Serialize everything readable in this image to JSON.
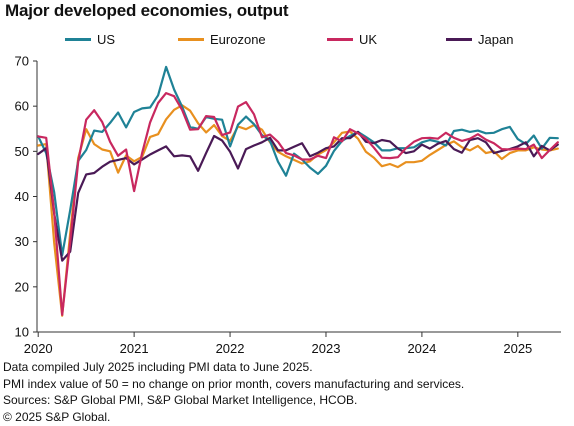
{
  "title": "Major developed economies, output",
  "chart_data": {
    "type": "line",
    "title": "Major developed economies, output",
    "xlabel": "",
    "ylabel": "",
    "ylim": [
      10,
      70
    ],
    "yticks": [
      10,
      20,
      30,
      40,
      50,
      60,
      70
    ],
    "xticks": [
      "2020",
      "2021",
      "2022",
      "2023",
      "2024",
      "2025"
    ],
    "xrange": [
      "2020-01",
      "2025-06"
    ],
    "grid": false,
    "legend": "top",
    "x": [
      "2020-01",
      "2020-02",
      "2020-03",
      "2020-04",
      "2020-05",
      "2020-06",
      "2020-07",
      "2020-08",
      "2020-09",
      "2020-10",
      "2020-11",
      "2020-12",
      "2021-01",
      "2021-02",
      "2021-03",
      "2021-04",
      "2021-05",
      "2021-06",
      "2021-07",
      "2021-08",
      "2021-09",
      "2021-10",
      "2021-11",
      "2021-12",
      "2022-01",
      "2022-02",
      "2022-03",
      "2022-04",
      "2022-05",
      "2022-06",
      "2022-07",
      "2022-08",
      "2022-09",
      "2022-10",
      "2022-11",
      "2022-12",
      "2023-01",
      "2023-02",
      "2023-03",
      "2023-04",
      "2023-05",
      "2023-06",
      "2023-07",
      "2023-08",
      "2023-09",
      "2023-10",
      "2023-11",
      "2023-12",
      "2024-01",
      "2024-02",
      "2024-03",
      "2024-04",
      "2024-05",
      "2024-06",
      "2024-07",
      "2024-08",
      "2024-09",
      "2024-10",
      "2024-11",
      "2024-12",
      "2025-01",
      "2025-02",
      "2025-03",
      "2025-04",
      "2025-05",
      "2025-06"
    ],
    "series": [
      {
        "name": "US",
        "color": "#1f8296",
        "values": [
          53.3,
          49.6,
          40.9,
          27.0,
          37.0,
          47.9,
          50.3,
          54.6,
          54.3,
          56.3,
          58.6,
          55.3,
          58.7,
          59.5,
          59.7,
          62.4,
          68.7,
          63.7,
          59.9,
          55.4,
          55.0,
          57.6,
          57.2,
          57.0,
          51.1,
          55.9,
          57.7,
          56.0,
          53.6,
          52.3,
          47.7,
          44.6,
          49.5,
          48.2,
          46.4,
          45.0,
          46.8,
          50.1,
          52.3,
          53.4,
          54.3,
          53.2,
          52.0,
          50.2,
          50.2,
          50.7,
          50.7,
          50.9,
          52.0,
          52.5,
          52.1,
          51.3,
          54.5,
          54.8,
          54.3,
          54.6,
          54.0,
          54.1,
          54.9,
          55.4,
          52.7,
          51.6,
          53.5,
          50.6,
          53.0,
          52.9
        ]
      },
      {
        "name": "Eurozone",
        "color": "#e8901f",
        "values": [
          51.3,
          51.6,
          29.7,
          13.6,
          31.9,
          48.5,
          54.9,
          51.6,
          50.4,
          50.0,
          45.3,
          49.1,
          47.8,
          48.8,
          53.2,
          53.8,
          57.1,
          59.2,
          60.2,
          59.0,
          56.2,
          54.2,
          55.8,
          53.4,
          52.3,
          55.5,
          54.9,
          55.8,
          54.8,
          52.0,
          49.9,
          48.9,
          48.1,
          47.3,
          47.8,
          49.3,
          50.3,
          52.0,
          54.1,
          54.4,
          52.8,
          49.9,
          48.6,
          46.7,
          47.2,
          46.5,
          47.6,
          47.6,
          47.9,
          49.2,
          50.3,
          51.4,
          52.2,
          50.9,
          50.2,
          51.2,
          49.6,
          50.0,
          48.3,
          49.6,
          50.2,
          50.2,
          50.9,
          50.4,
          50.2,
          50.6
        ]
      },
      {
        "name": "UK",
        "color": "#c8285f",
        "values": [
          53.3,
          53.0,
          36.5,
          13.8,
          30.0,
          47.7,
          57.0,
          59.1,
          56.5,
          52.1,
          49.0,
          50.4,
          41.2,
          49.6,
          56.4,
          60.7,
          62.9,
          62.2,
          59.2,
          54.8,
          54.9,
          57.8,
          57.6,
          53.6,
          54.2,
          59.9,
          60.9,
          58.2,
          53.1,
          53.7,
          52.1,
          49.6,
          49.1,
          48.2,
          48.2,
          49.0,
          48.5,
          53.1,
          52.2,
          54.9,
          54.0,
          52.8,
          50.8,
          48.6,
          48.5,
          48.7,
          50.7,
          52.1,
          52.9,
          53.0,
          52.8,
          54.1,
          53.0,
          52.3,
          52.8,
          53.8,
          52.6,
          51.8,
          50.5,
          50.4,
          50.6,
          50.5,
          51.5,
          48.5,
          50.3,
          52.0
        ]
      },
      {
        "name": "Japan",
        "color": "#4a1a56",
        "values": [
          49.4,
          50.7,
          36.2,
          25.8,
          27.8,
          40.8,
          44.9,
          45.2,
          46.6,
          47.7,
          48.1,
          48.5,
          47.1,
          48.2,
          49.3,
          50.2,
          51.1,
          48.9,
          49.1,
          48.9,
          45.7,
          49.6,
          53.4,
          52.4,
          49.9,
          46.2,
          50.5,
          51.3,
          52.0,
          53.0,
          50.2,
          50.2,
          51.0,
          51.8,
          48.9,
          49.7,
          50.7,
          51.1,
          52.9,
          52.9,
          54.3,
          52.1,
          51.8,
          52.5,
          52.2,
          50.6,
          49.6,
          50.0,
          51.5,
          50.6,
          51.7,
          52.3,
          50.5,
          49.7,
          52.5,
          52.9,
          52.0,
          49.6,
          50.1,
          50.5,
          51.1,
          52.0,
          48.9,
          51.2,
          50.2,
          51.5
        ]
      }
    ]
  },
  "footnotes": [
    "Data compiled July 2025 including PMI data to June 2025.",
    "PMI index value of 50 = no change on prior month, covers manufacturing and services.",
    "Sources: S&P Global PMI, S&P Global Market Intelligence, HCOB.",
    "© 2025 S&P Global."
  ]
}
